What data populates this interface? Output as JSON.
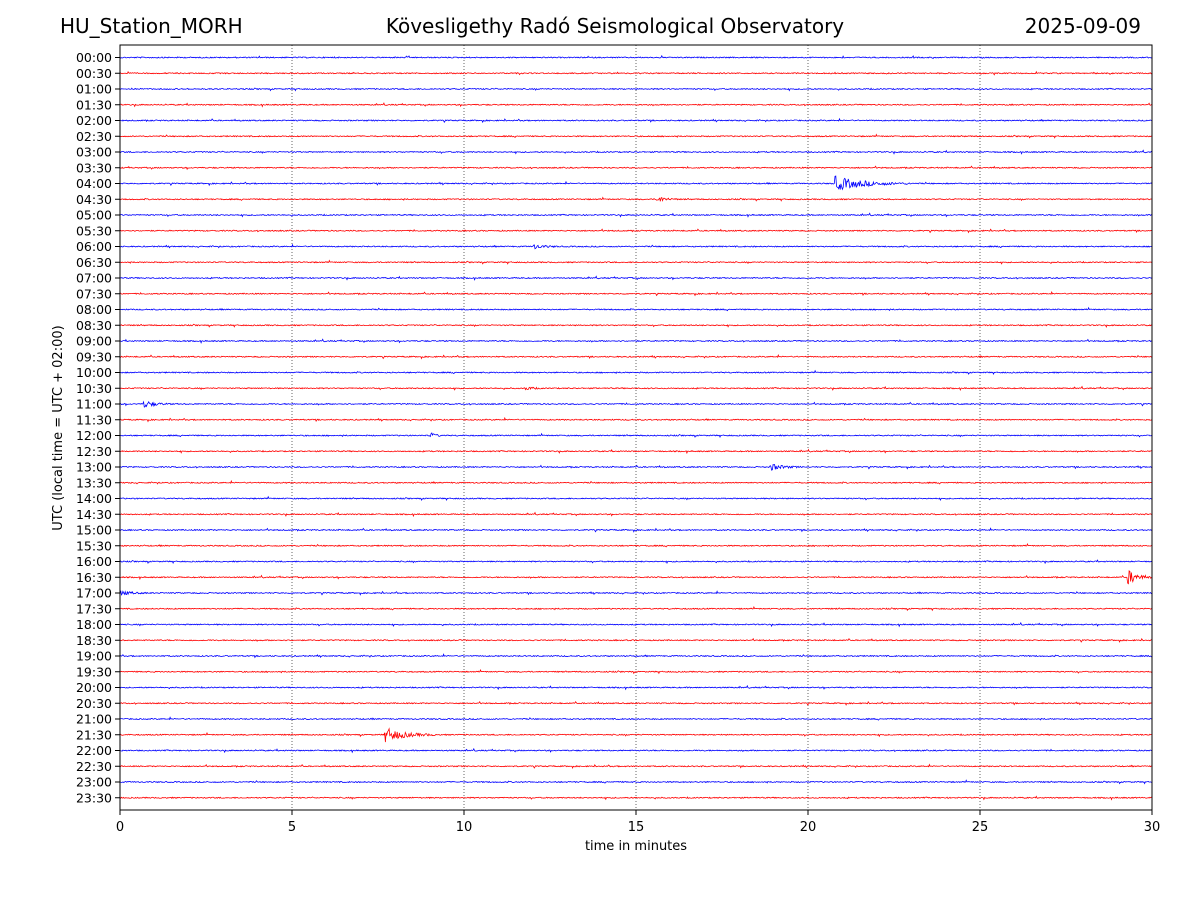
{
  "header": {
    "station": "HU_Station_MORH",
    "title": "Kövesligethy Radó Seismological Observatory",
    "date": "2025-09-09"
  },
  "chart_data": {
    "type": "line",
    "xlabel": "time in minutes",
    "ylabel": "UTC (local time = UTC + 02:00)",
    "xlim": [
      0,
      30
    ],
    "xticks": [
      "0",
      "5",
      "10",
      "15",
      "20",
      "25",
      "30"
    ],
    "grid": "vertical dotted at x ticks",
    "series_colors": [
      "#0000ff",
      "#ff0000"
    ],
    "rows": [
      "00:00",
      "00:30",
      "01:00",
      "01:30",
      "02:00",
      "02:30",
      "03:00",
      "03:30",
      "04:00",
      "04:30",
      "05:00",
      "05:30",
      "06:00",
      "06:30",
      "07:00",
      "07:30",
      "08:00",
      "08:30",
      "09:00",
      "09:30",
      "10:00",
      "10:30",
      "11:00",
      "11:30",
      "12:00",
      "12:30",
      "13:00",
      "13:30",
      "14:00",
      "14:30",
      "15:00",
      "15:30",
      "16:00",
      "16:30",
      "17:00",
      "17:30",
      "18:00",
      "18:30",
      "19:00",
      "19:30",
      "20:00",
      "20:30",
      "21:00",
      "21:30",
      "22:00",
      "22:30",
      "23:00",
      "23:30"
    ],
    "events": [
      {
        "row": "04:00",
        "start_min": 20.8,
        "duration_min": 2.2,
        "amplitude": 1.0
      },
      {
        "row": "04:30",
        "start_min": 15.6,
        "duration_min": 0.6,
        "amplitude": 0.55
      },
      {
        "row": "06:00",
        "start_min": 12.0,
        "duration_min": 0.8,
        "amplitude": 0.35
      },
      {
        "row": "10:30",
        "start_min": 11.8,
        "duration_min": 0.5,
        "amplitude": 0.25
      },
      {
        "row": "11:00",
        "start_min": 0.7,
        "duration_min": 0.8,
        "amplitude": 0.5
      },
      {
        "row": "12:00",
        "start_min": 9.0,
        "duration_min": 0.4,
        "amplitude": 0.5
      },
      {
        "row": "13:00",
        "start_min": 18.9,
        "duration_min": 0.9,
        "amplitude": 0.5
      },
      {
        "row": "16:30",
        "start_min": 29.3,
        "duration_min": 0.7,
        "amplitude": 1.1
      },
      {
        "row": "17:00",
        "start_min": 0.0,
        "duration_min": 0.8,
        "amplitude": 0.35
      },
      {
        "row": "21:30",
        "start_min": 7.7,
        "duration_min": 1.5,
        "amplitude": 1.0
      }
    ]
  }
}
